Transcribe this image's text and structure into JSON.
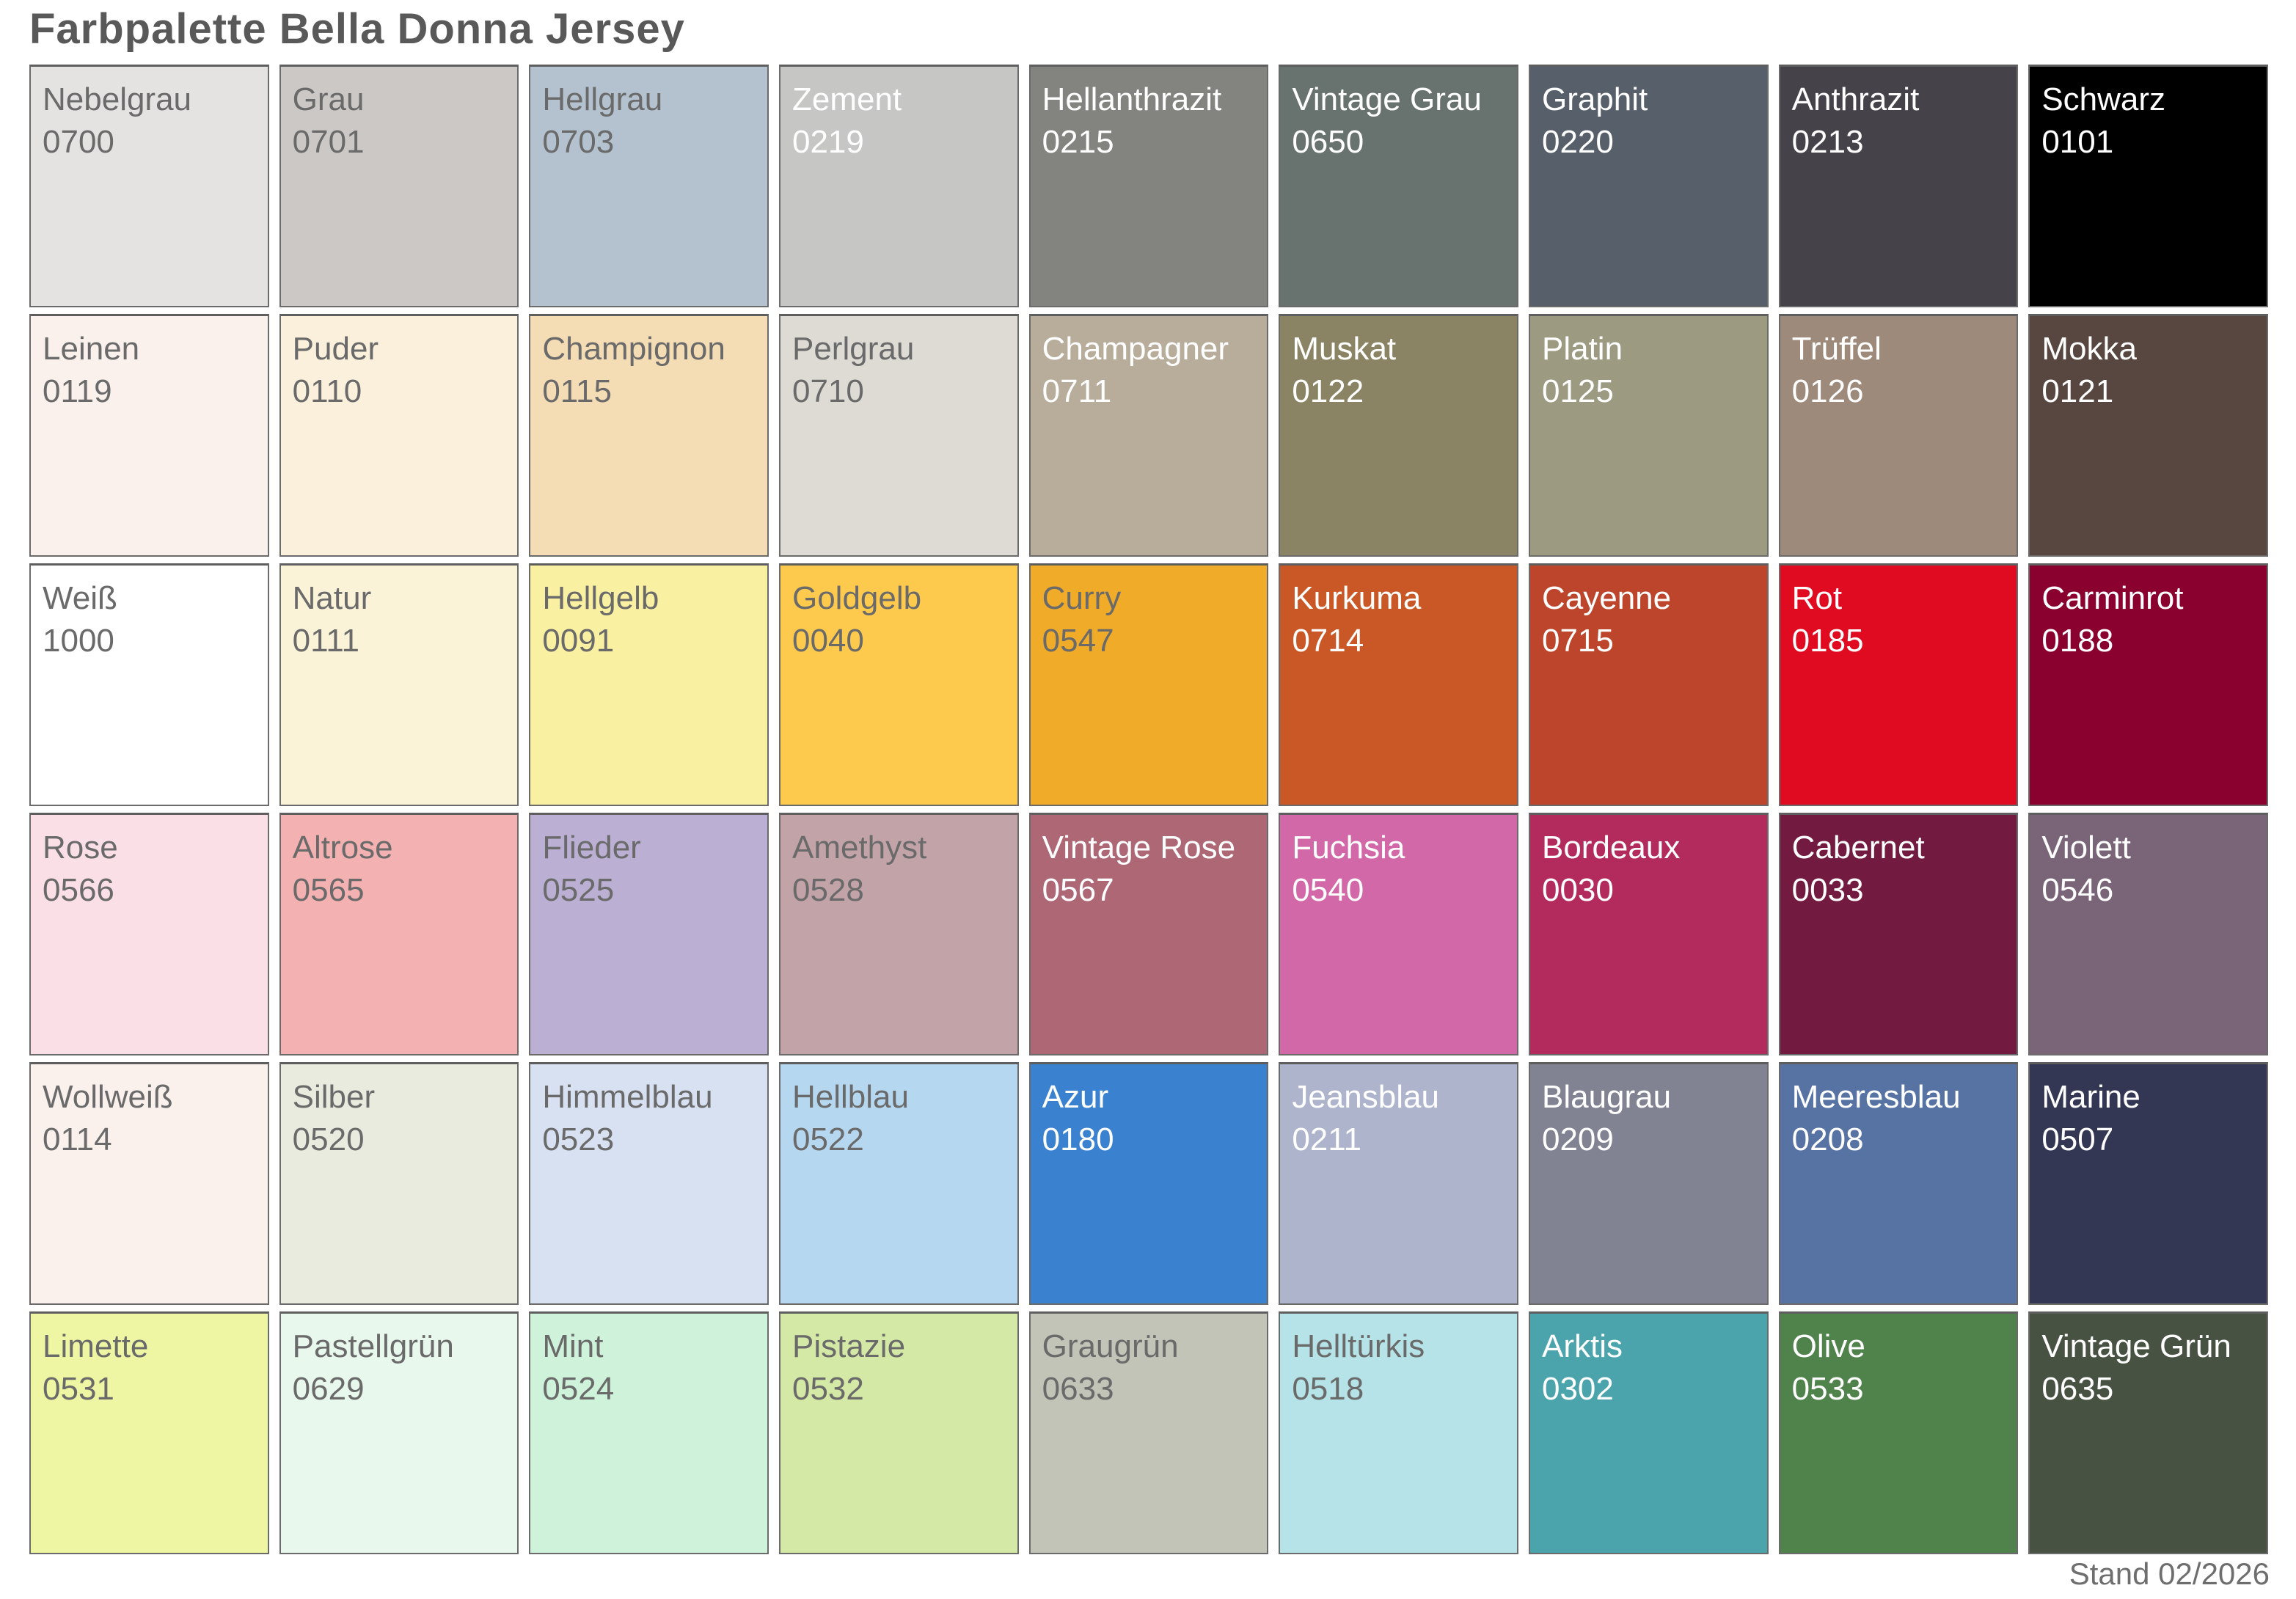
{
  "title": "Farbpalette Bella Donna Jersey",
  "footer": {
    "label": "Stand 02/2026"
  },
  "colors": {
    "page_background": "#ffffff",
    "title_text": "#595959",
    "footer_text": "#6e6e6e",
    "swatch_border": "#6b6b6b",
    "swatch_dark_text": "#6a6a6a",
    "swatch_light_text": "#ffffff"
  },
  "palette": {
    "columns": 9,
    "rows": 6,
    "swatches": [
      {
        "name": "Nebelgrau",
        "code": "0700",
        "color": "#e4e3e1",
        "text": "dark"
      },
      {
        "name": "Grau",
        "code": "0701",
        "color": "#cbc8c5",
        "text": "dark"
      },
      {
        "name": "Hellgrau",
        "code": "0703",
        "color": "#b4c2cf",
        "text": "dark"
      },
      {
        "name": "Zement",
        "code": "0219",
        "color": "#c6c6c4",
        "text": "light"
      },
      {
        "name": "Hellanthrazit",
        "code": "0215",
        "color": "#838380",
        "text": "light"
      },
      {
        "name": "Vintage Grau",
        "code": "0650",
        "color": "#68736f",
        "text": "light"
      },
      {
        "name": "Graphit",
        "code": "0220",
        "color": "#575f6a",
        "text": "light"
      },
      {
        "name": "Anthrazit",
        "code": "0213",
        "color": "#46424a",
        "text": "light"
      },
      {
        "name": "Schwarz",
        "code": "0101",
        "color": "#000000",
        "text": "light"
      },
      {
        "name": "Leinen",
        "code": "0119",
        "color": "#fbf1ec",
        "text": "dark"
      },
      {
        "name": "Puder",
        "code": "0110",
        "color": "#fbf0dc",
        "text": "dark"
      },
      {
        "name": "Champignon",
        "code": "0115",
        "color": "#f4dcb4",
        "text": "dark"
      },
      {
        "name": "Perlgrau",
        "code": "0710",
        "color": "#dddbd3",
        "text": "dark"
      },
      {
        "name": "Champagner",
        "code": "0711",
        "color": "#b8ac9b",
        "text": "light"
      },
      {
        "name": "Muskat",
        "code": "0122",
        "color": "#8a8464",
        "text": "light"
      },
      {
        "name": "Platin",
        "code": "0125",
        "color": "#9d9a82",
        "text": "light"
      },
      {
        "name": "Trüffel",
        "code": "0126",
        "color": "#9e8a7a",
        "text": "light"
      },
      {
        "name": "Mokka",
        "code": "0121",
        "color": "#574740",
        "text": "light"
      },
      {
        "name": "Weiß",
        "code": "1000",
        "color": "#ffffff",
        "text": "dark"
      },
      {
        "name": "Natur",
        "code": "0111",
        "color": "#faf3d8",
        "text": "dark"
      },
      {
        "name": "Hellgelb",
        "code": "0091",
        "color": "#faf0a2",
        "text": "dark"
      },
      {
        "name": "Goldgelb",
        "code": "0040",
        "color": "#fdca4e",
        "text": "dark"
      },
      {
        "name": "Curry",
        "code": "0547",
        "color": "#f0ab28",
        "text": "dark"
      },
      {
        "name": "Kurkuma",
        "code": "0714",
        "color": "#c95826",
        "text": "light"
      },
      {
        "name": "Cayenne",
        "code": "0715",
        "color": "#bc452b",
        "text": "light"
      },
      {
        "name": "Rot",
        "code": "0185",
        "color": "#e00b20",
        "text": "light"
      },
      {
        "name": "Carminrot",
        "code": "0188",
        "color": "#8a0130",
        "text": "light"
      },
      {
        "name": "Rose",
        "code": "0566",
        "color": "#fbdfe7",
        "text": "dark"
      },
      {
        "name": "Altrose",
        "code": "0565",
        "color": "#f4b1b1",
        "text": "dark"
      },
      {
        "name": "Flieder",
        "code": "0525",
        "color": "#bbafd3",
        "text": "dark"
      },
      {
        "name": "Amethyst",
        "code": "0528",
        "color": "#c2a3a8",
        "text": "dark"
      },
      {
        "name": "Vintage Rose",
        "code": "0567",
        "color": "#ad6775",
        "text": "light"
      },
      {
        "name": "Fuchsia",
        "code": "0540",
        "color": "#d268a8",
        "text": "light"
      },
      {
        "name": "Bordeaux",
        "code": "0030",
        "color": "#b32a5c",
        "text": "light"
      },
      {
        "name": "Cabernet",
        "code": "0033",
        "color": "#721a40",
        "text": "light"
      },
      {
        "name": "Violett",
        "code": "0546",
        "color": "#7a6478",
        "text": "light"
      },
      {
        "name": "Wollweiß",
        "code": "0114",
        "color": "#faf1ed",
        "text": "dark"
      },
      {
        "name": "Silber",
        "code": "0520",
        "color": "#e9ebdf",
        "text": "dark"
      },
      {
        "name": "Himmelblau",
        "code": "0523",
        "color": "#d7e1f2",
        "text": "dark"
      },
      {
        "name": "Hellblau",
        "code": "0522",
        "color": "#b5d8f0",
        "text": "dark"
      },
      {
        "name": "Azur",
        "code": "0180",
        "color": "#3a82d0",
        "text": "light"
      },
      {
        "name": "Jeansblau",
        "code": "0211",
        "color": "#adb4cc",
        "text": "light"
      },
      {
        "name": "Blaugrau",
        "code": "0209",
        "color": "#818292",
        "text": "light"
      },
      {
        "name": "Meeresblau",
        "code": "0208",
        "color": "#5673a4",
        "text": "light"
      },
      {
        "name": "Marine",
        "code": "0507",
        "color": "#343754",
        "text": "light"
      },
      {
        "name": "Limette",
        "code": "0531",
        "color": "#eef5a3",
        "text": "dark"
      },
      {
        "name": "Pastellgrün",
        "code": "0629",
        "color": "#e9f8ed",
        "text": "dark"
      },
      {
        "name": "Mint",
        "code": "0524",
        "color": "#cef3da",
        "text": "dark"
      },
      {
        "name": "Pistazie",
        "code": "0532",
        "color": "#d5e9a6",
        "text": "dark"
      },
      {
        "name": "Graugrün",
        "code": "0633",
        "color": "#c1c4b6",
        "text": "dark"
      },
      {
        "name": "Helltürkis",
        "code": "0518",
        "color": "#b5e3e8",
        "text": "dark"
      },
      {
        "name": "Arktis",
        "code": "0302",
        "color": "#4ba4ac",
        "text": "light"
      },
      {
        "name": "Olive",
        "code": "0533",
        "color": "#50824c",
        "text": "light"
      },
      {
        "name": "Vintage Grün",
        "code": "0635",
        "color": "#475243",
        "text": "light"
      }
    ]
  }
}
